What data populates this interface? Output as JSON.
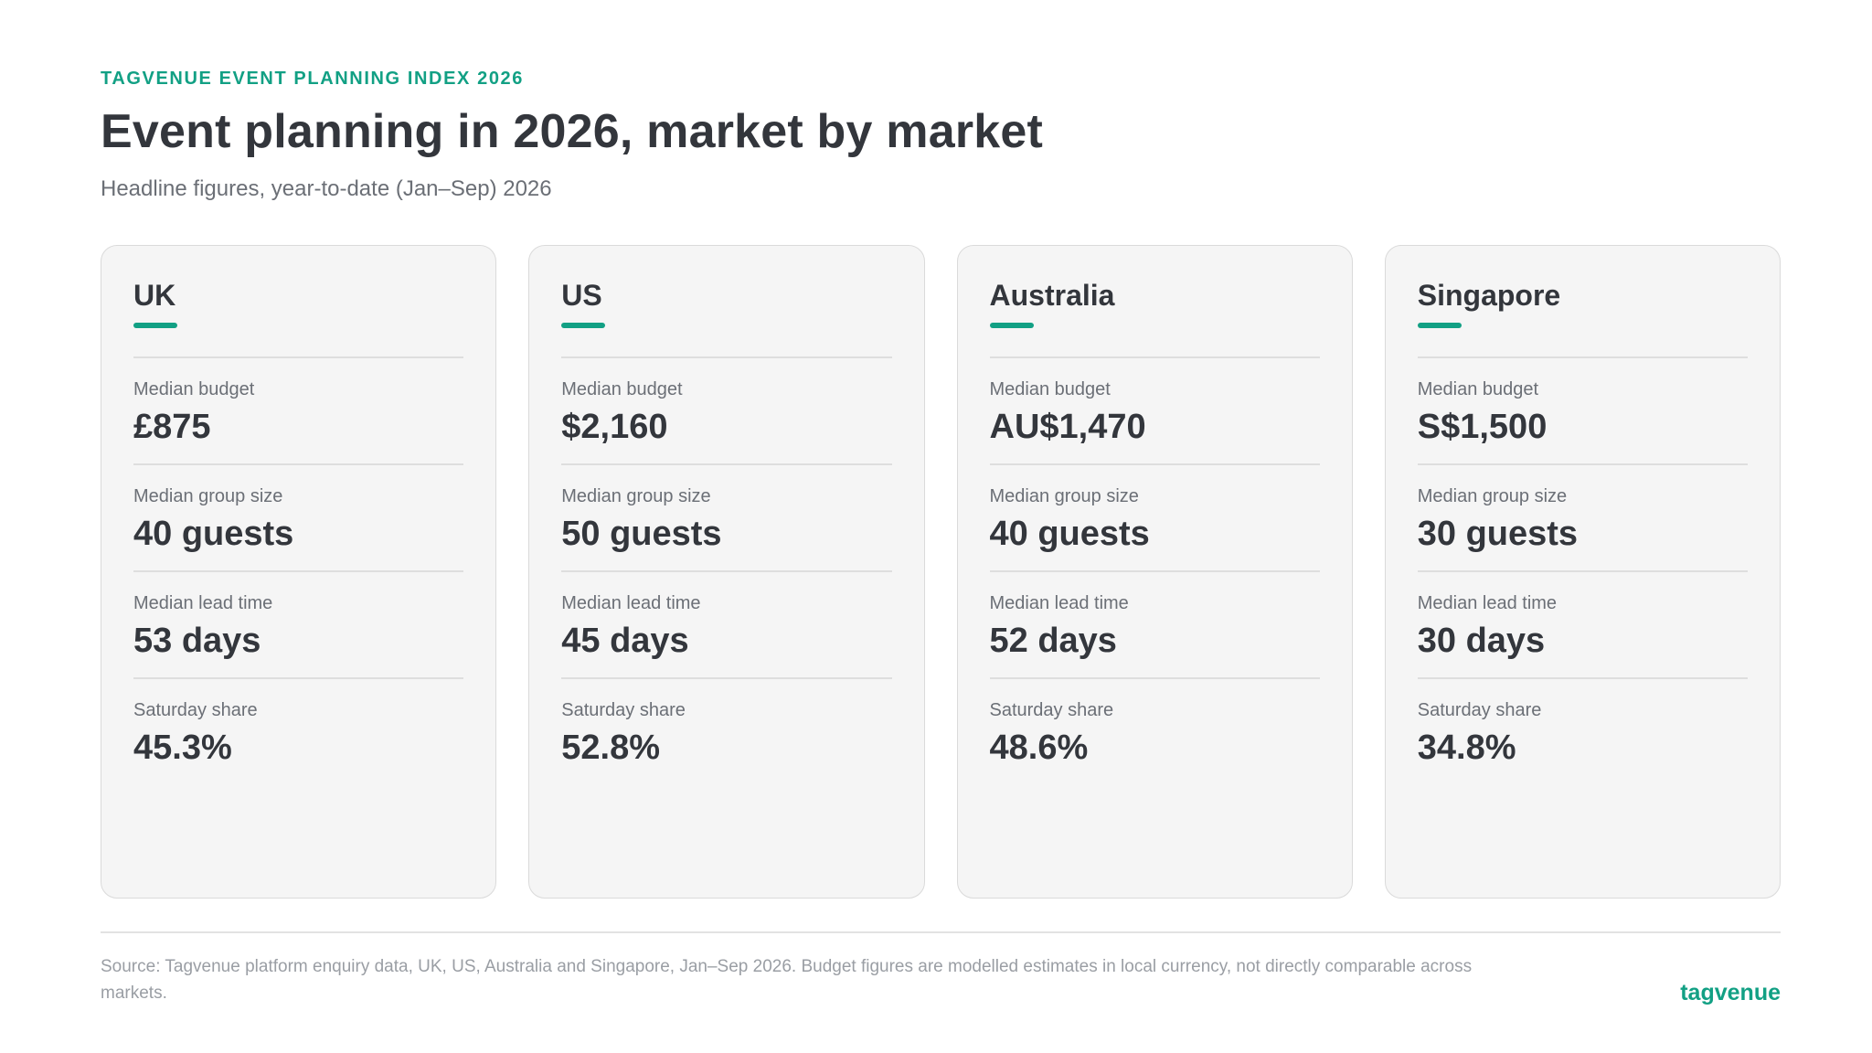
{
  "header": {
    "eyebrow": "TAGVENUE EVENT PLANNING INDEX 2026",
    "title": "Event planning in 2026, market by market",
    "subtitle": "Headline figures, year-to-date (Jan–Sep) 2026"
  },
  "colors": {
    "accent": "#12a084",
    "text": "#33363c",
    "muted": "#6b6f76",
    "card_bg": "#f5f5f5"
  },
  "markets": [
    {
      "name": "UK",
      "metrics": [
        {
          "label": "Median budget",
          "value": "£875"
        },
        {
          "label": "Median group size",
          "value": "40 guests"
        },
        {
          "label": "Median lead time",
          "value": "53 days"
        },
        {
          "label": "Saturday share",
          "value": "45.3%"
        }
      ]
    },
    {
      "name": "US",
      "metrics": [
        {
          "label": "Median budget",
          "value": "$2,160"
        },
        {
          "label": "Median group size",
          "value": "50 guests"
        },
        {
          "label": "Median lead time",
          "value": "45 days"
        },
        {
          "label": "Saturday share",
          "value": "52.8%"
        }
      ]
    },
    {
      "name": "Australia",
      "metrics": [
        {
          "label": "Median budget",
          "value": "AU$1,470"
        },
        {
          "label": "Median group size",
          "value": "40 guests"
        },
        {
          "label": "Median lead time",
          "value": "52 days"
        },
        {
          "label": "Saturday share",
          "value": "48.6%"
        }
      ]
    },
    {
      "name": "Singapore",
      "metrics": [
        {
          "label": "Median budget",
          "value": "S$1,500"
        },
        {
          "label": "Median group size",
          "value": "30 guests"
        },
        {
          "label": "Median lead time",
          "value": "30 days"
        },
        {
          "label": "Saturday share",
          "value": "34.8%"
        }
      ]
    }
  ],
  "footer": {
    "source": "Source: Tagvenue platform enquiry data, UK, US, Australia and Singapore, Jan–Sep 2026. Budget figures are modelled estimates in local currency, not directly comparable across markets.",
    "brand": "tagvenue"
  }
}
